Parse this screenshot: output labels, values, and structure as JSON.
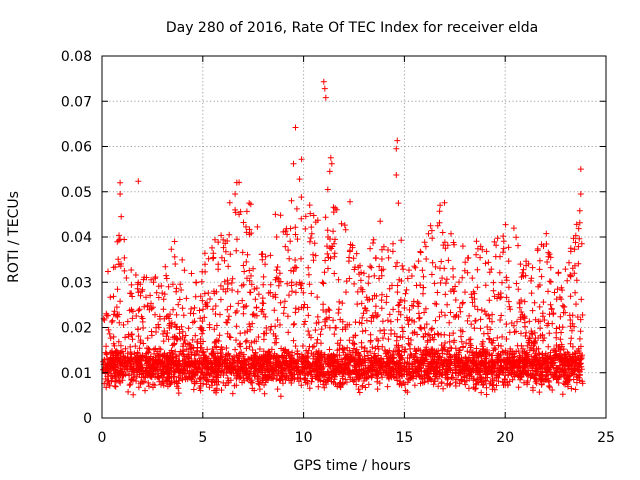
{
  "chart_data": {
    "type": "scatter",
    "title": "Day 280 of 2016, Rate Of TEC Index for receiver elda",
    "xlabel": "GPS time / hours",
    "ylabel": "ROTI / TECUs",
    "xlim": [
      0,
      25
    ],
    "ylim": [
      0,
      0.08
    ],
    "grid": true,
    "marker": "+",
    "color": "#ff0000",
    "x_ticks": [
      "0",
      "5",
      "10",
      "15",
      "20",
      "25"
    ],
    "y_ticks": [
      "0",
      "0.01",
      "0.02",
      "0.03",
      "0.04",
      "0.05",
      "0.06",
      "0.07",
      "0.08"
    ],
    "series": [
      {
        "name": "ROTI",
        "description": "dense band of values, mostly 0.003 to 0.03 TECU with scattered spikes",
        "typical_range": [
          0.003,
          0.025
        ],
        "outliers": [
          {
            "x": 0.9,
            "y": 0.052
          },
          {
            "x": 0.9,
            "y": 0.0495
          },
          {
            "x": 0.95,
            "y": 0.0445
          },
          {
            "x": 0.9,
            "y": 0.0395
          },
          {
            "x": 0.85,
            "y": 0.034
          },
          {
            "x": 1.8,
            "y": 0.0523
          },
          {
            "x": 3.6,
            "y": 0.039
          },
          {
            "x": 6.6,
            "y": 0.0495
          },
          {
            "x": 6.8,
            "y": 0.045
          },
          {
            "x": 7.3,
            "y": 0.0475
          },
          {
            "x": 8.6,
            "y": 0.045
          },
          {
            "x": 9.6,
            "y": 0.0642
          },
          {
            "x": 9.5,
            "y": 0.0562
          },
          {
            "x": 9.9,
            "y": 0.0572
          },
          {
            "x": 9.8,
            "y": 0.0528
          },
          {
            "x": 9.4,
            "y": 0.048
          },
          {
            "x": 11.0,
            "y": 0.0743
          },
          {
            "x": 11.05,
            "y": 0.0728
          },
          {
            "x": 11.1,
            "y": 0.0708
          },
          {
            "x": 11.35,
            "y": 0.0575
          },
          {
            "x": 11.4,
            "y": 0.0562
          },
          {
            "x": 11.3,
            "y": 0.0545
          },
          {
            "x": 11.2,
            "y": 0.0505
          },
          {
            "x": 11.5,
            "y": 0.0455
          },
          {
            "x": 12.3,
            "y": 0.0478
          },
          {
            "x": 13.8,
            "y": 0.0435
          },
          {
            "x": 14.65,
            "y": 0.0613
          },
          {
            "x": 14.6,
            "y": 0.0595
          },
          {
            "x": 14.6,
            "y": 0.0537
          },
          {
            "x": 14.7,
            "y": 0.0475
          },
          {
            "x": 16.3,
            "y": 0.0425
          },
          {
            "x": 16.9,
            "y": 0.041
          },
          {
            "x": 17.9,
            "y": 0.038
          },
          {
            "x": 21.9,
            "y": 0.038
          },
          {
            "x": 23.75,
            "y": 0.055
          },
          {
            "x": 23.75,
            "y": 0.0495
          },
          {
            "x": 23.7,
            "y": 0.0458
          },
          {
            "x": 23.8,
            "y": 0.0385
          }
        ]
      }
    ]
  }
}
